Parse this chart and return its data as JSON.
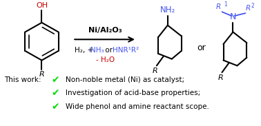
{
  "bg_color": "#ffffff",
  "catalyst_text": "Ni/Al₂O₃",
  "minus_water": "- H₂O",
  "or_label": "or",
  "this_work": "This work:",
  "bullet1": "Non-noble metal (Ni) as catalyst;",
  "bullet2": "Investigation of acid-base properties;",
  "bullet3": "Wide phenol and amine reactant scope.",
  "check_color": "#00dd00",
  "blue_color": "#4455ee",
  "red_color": "#cc0000",
  "black_color": "#000000",
  "figsize": [
    3.78,
    1.83
  ],
  "dpi": 100
}
